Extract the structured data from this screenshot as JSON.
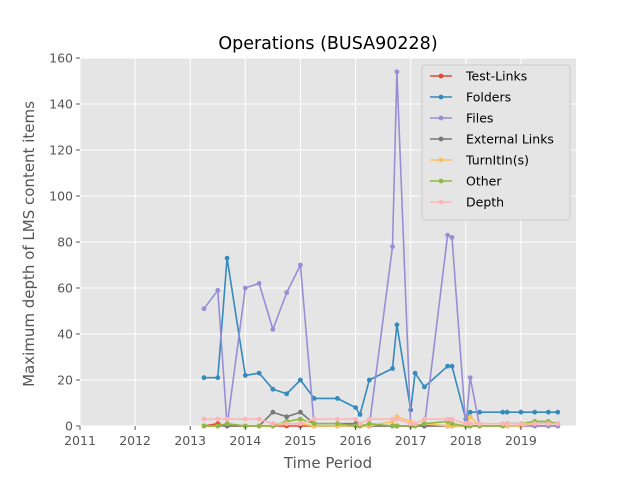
{
  "chart_data": {
    "type": "line",
    "title": "Operations (BUSA90228)",
    "xlabel": "Time Period",
    "ylabel": "Maximum depth of LMS content items",
    "xlim": [
      2011.0,
      2020.0
    ],
    "ylim": [
      0,
      160
    ],
    "x_ticks": [
      "2011",
      "2012",
      "2013",
      "2014",
      "2015",
      "2016",
      "2017",
      "2018",
      "2019"
    ],
    "y_ticks": [
      "0",
      "20",
      "40",
      "60",
      "80",
      "100",
      "120",
      "140",
      "160"
    ],
    "grid": true,
    "legend_position": "top-right",
    "series": [
      {
        "name": "Test-Links",
        "color": "#e24a33",
        "x": [
          2013.25,
          2013.5,
          2013.67,
          2014.0,
          2014.25,
          2014.5,
          2014.75,
          2015.0,
          2015.25,
          2015.67,
          2016.0,
          2016.08,
          2016.25,
          2016.67,
          2016.75,
          2017.0,
          2017.08,
          2017.25,
          2017.67,
          2017.75,
          2018.0,
          2018.08,
          2018.25,
          2018.67,
          2018.75,
          2019.0,
          2019.25,
          2019.5,
          2019.67
        ],
        "y": [
          0,
          1,
          0,
          0,
          0,
          0,
          0,
          0,
          0,
          0,
          0,
          0,
          0,
          0,
          0,
          0,
          0,
          0,
          0,
          0,
          0,
          0,
          0,
          0,
          0,
          0,
          0,
          0,
          0
        ]
      },
      {
        "name": "Folders",
        "color": "#348abd",
        "x": [
          2013.25,
          2013.5,
          2013.67,
          2014.0,
          2014.25,
          2014.5,
          2014.75,
          2015.0,
          2015.25,
          2015.67,
          2016.0,
          2016.08,
          2016.25,
          2016.67,
          2016.75,
          2017.0,
          2017.08,
          2017.25,
          2017.67,
          2017.75,
          2018.0,
          2018.08,
          2018.25,
          2018.67,
          2018.75,
          2019.0,
          2019.25,
          2019.5,
          2019.67
        ],
        "y": [
          21,
          21,
          73,
          22,
          23,
          16,
          14,
          20,
          12,
          12,
          8,
          5,
          20,
          25,
          44,
          7,
          23,
          17,
          26,
          26,
          3,
          6,
          6,
          6,
          6,
          6,
          6,
          6,
          6
        ]
      },
      {
        "name": "Files",
        "color": "#988ed5",
        "x": [
          2013.25,
          2013.5,
          2013.67,
          2014.0,
          2014.25,
          2014.5,
          2014.75,
          2015.0,
          2015.25,
          2015.67,
          2016.0,
          2016.08,
          2016.25,
          2016.67,
          2016.75,
          2017.0,
          2017.08,
          2017.25,
          2017.67,
          2017.75,
          2018.0,
          2018.08,
          2018.25,
          2018.67,
          2018.75,
          2019.0,
          2019.25,
          2019.5,
          2019.67
        ],
        "y": [
          51,
          59,
          0,
          60,
          62,
          42,
          58,
          70,
          0,
          0,
          0,
          0,
          0,
          78,
          154,
          0,
          0,
          0,
          83,
          82,
          0,
          21,
          0,
          0,
          0,
          0,
          0,
          0,
          0
        ]
      },
      {
        "name": "External Links",
        "color": "#777777",
        "x": [
          2013.25,
          2013.5,
          2013.67,
          2014.0,
          2014.25,
          2014.5,
          2014.75,
          2015.0,
          2015.25,
          2015.67,
          2016.0,
          2016.08,
          2016.25,
          2016.67,
          2016.75,
          2017.0,
          2017.08,
          2017.25,
          2017.67,
          2017.75,
          2018.0,
          2018.08,
          2018.25,
          2018.67,
          2018.75,
          2019.0,
          2019.25,
          2019.5,
          2019.67
        ],
        "y": [
          0,
          0,
          0,
          0,
          0,
          6,
          4,
          6,
          1,
          1,
          1,
          0,
          0,
          0,
          0,
          0,
          0,
          0,
          0,
          0,
          0,
          0,
          0,
          0,
          1,
          1,
          1,
          1,
          1
        ]
      },
      {
        "name": "TurnItIn(s)",
        "color": "#fbc15e",
        "x": [
          2013.25,
          2013.5,
          2013.67,
          2014.0,
          2014.25,
          2014.5,
          2014.75,
          2015.0,
          2015.25,
          2015.67,
          2016.0,
          2016.08,
          2016.25,
          2016.67,
          2016.75,
          2017.0,
          2017.08,
          2017.25,
          2017.67,
          2017.75,
          2018.0,
          2018.08,
          2018.25,
          2018.67,
          2018.75,
          2019.0,
          2019.25,
          2019.5,
          2019.67
        ],
        "y": [
          0,
          0,
          1,
          0,
          0,
          0,
          1,
          1,
          0,
          0,
          0,
          0,
          0,
          2,
          4,
          2,
          0,
          1,
          0,
          0,
          0,
          4,
          0,
          0,
          0,
          0,
          1,
          1,
          1
        ]
      },
      {
        "name": "Other",
        "color": "#8eba42",
        "x": [
          2013.25,
          2013.5,
          2013.67,
          2014.0,
          2014.25,
          2014.5,
          2014.75,
          2015.0,
          2015.25,
          2015.67,
          2016.0,
          2016.08,
          2016.25,
          2016.67,
          2016.75,
          2017.0,
          2017.08,
          2017.25,
          2017.67,
          2017.75,
          2018.0,
          2018.08,
          2018.25,
          2018.67,
          2018.75,
          2019.0,
          2019.25,
          2019.5,
          2019.67
        ],
        "y": [
          0,
          0,
          1,
          0,
          0,
          0,
          2,
          3,
          1,
          1,
          0,
          0,
          1,
          0,
          0,
          0,
          0,
          1,
          2,
          1,
          0,
          0,
          0,
          0,
          1,
          1,
          2,
          2,
          1
        ]
      },
      {
        "name": "Depth",
        "color": "#ffb5b8",
        "x": [
          2013.25,
          2013.5,
          2013.67,
          2014.0,
          2014.25,
          2014.5,
          2014.75,
          2015.0,
          2015.25,
          2015.67,
          2016.0,
          2016.08,
          2016.25,
          2016.67,
          2016.75,
          2017.0,
          2017.08,
          2017.25,
          2017.67,
          2017.75,
          2018.0,
          2018.08,
          2018.25,
          2018.67,
          2018.75,
          2019.0,
          2019.25,
          2019.5,
          2019.67
        ],
        "y": [
          3,
          3,
          3,
          3,
          3,
          1,
          1,
          1,
          3,
          3,
          3,
          1,
          3,
          3,
          3,
          1,
          1,
          3,
          3,
          3,
          1,
          1,
          1,
          1,
          1,
          1,
          1,
          1,
          1
        ]
      }
    ]
  }
}
